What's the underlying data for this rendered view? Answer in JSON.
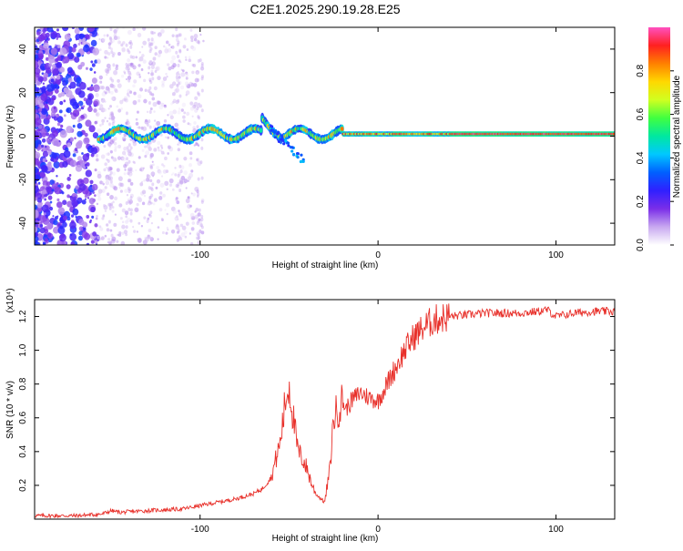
{
  "title": "C2E1.2025.290.19.28.E25",
  "colors": {
    "snr_line": "#e8302a",
    "axis": "#000000",
    "background": "#ffffff"
  },
  "chart_data": [
    {
      "type": "heatmap",
      "name": "spectrogram",
      "xlabel": "Height of straight line (km)",
      "ylabel": "Frequency (Hz)",
      "xlim": [
        -193,
        133
      ],
      "ylim": [
        -50,
        50
      ],
      "xticks": [
        -100,
        0,
        100
      ],
      "xtick_labels": [
        "-100",
        "0",
        "100"
      ],
      "yticks": [
        -40,
        -20,
        0,
        20,
        40
      ],
      "ytick_labels": [
        "-40",
        "-20",
        "0",
        "20",
        "40"
      ],
      "colorbar": {
        "label": "Normalized spectral amplitude",
        "range": [
          0,
          1
        ],
        "ticks": [
          0.0,
          0.2,
          0.4,
          0.6,
          0.8
        ],
        "tick_labels": [
          "0.0",
          "0.2",
          "0.4",
          "0.6",
          "0.8"
        ],
        "colormap": [
          "#ffffff",
          "#c8a8f0",
          "#7a2ee8",
          "#3020ff",
          "#0060ff",
          "#00c8ff",
          "#00e8a0",
          "#40ff40",
          "#d0ff20",
          "#ffd800",
          "#ff8000",
          "#ff2020",
          "#ff50c0"
        ]
      },
      "features": [
        {
          "description": "scattered noise",
          "x_range": [
            -193,
            -100
          ],
          "freq_range": [
            -50,
            50
          ]
        },
        {
          "description": "carrier band",
          "x_range": [
            -157,
            133
          ],
          "freq_center": 1
        }
      ]
    },
    {
      "type": "line",
      "name": "snr",
      "xlabel": "Height of straight line (km)",
      "ylabel": "SNR (10 * v/v)",
      "y_multiplier": "(x10⁴)",
      "xlim": [
        -193,
        133
      ],
      "ylim": [
        0,
        1.3
      ],
      "xticks": [
        -100,
        0,
        100
      ],
      "xtick_labels": [
        "-100",
        "0",
        "100"
      ],
      "yticks": [
        0.2,
        0.4,
        0.6,
        0.8,
        1.0,
        1.2
      ],
      "ytick_labels": [
        "0.2",
        "0.4",
        "0.6",
        "0.8",
        "1.0",
        "1.2"
      ],
      "x": [
        -193,
        -170,
        -155,
        -150,
        -145,
        -130,
        -110,
        -100,
        -90,
        -80,
        -70,
        -65,
        -60,
        -55,
        -52,
        -50,
        -47,
        -45,
        -42,
        -40,
        -37,
        -35,
        -30,
        -27,
        -25,
        -20,
        -18,
        -15,
        -10,
        -5,
        0,
        5,
        10,
        15,
        20,
        25,
        30,
        35,
        40,
        50,
        60,
        70,
        80,
        90,
        95,
        100,
        105,
        110,
        120,
        133
      ],
      "values": [
        0.02,
        0.02,
        0.03,
        0.05,
        0.04,
        0.05,
        0.06,
        0.08,
        0.1,
        0.12,
        0.15,
        0.18,
        0.25,
        0.45,
        0.7,
        0.8,
        0.55,
        0.4,
        0.35,
        0.3,
        0.2,
        0.15,
        0.1,
        0.3,
        0.6,
        0.7,
        0.65,
        0.7,
        0.75,
        0.72,
        0.7,
        0.8,
        0.9,
        1.0,
        1.08,
        1.13,
        1.17,
        1.19,
        1.2,
        1.21,
        1.22,
        1.22,
        1.22,
        1.23,
        1.24,
        1.2,
        1.21,
        1.22,
        1.23,
        1.23
      ]
    }
  ]
}
